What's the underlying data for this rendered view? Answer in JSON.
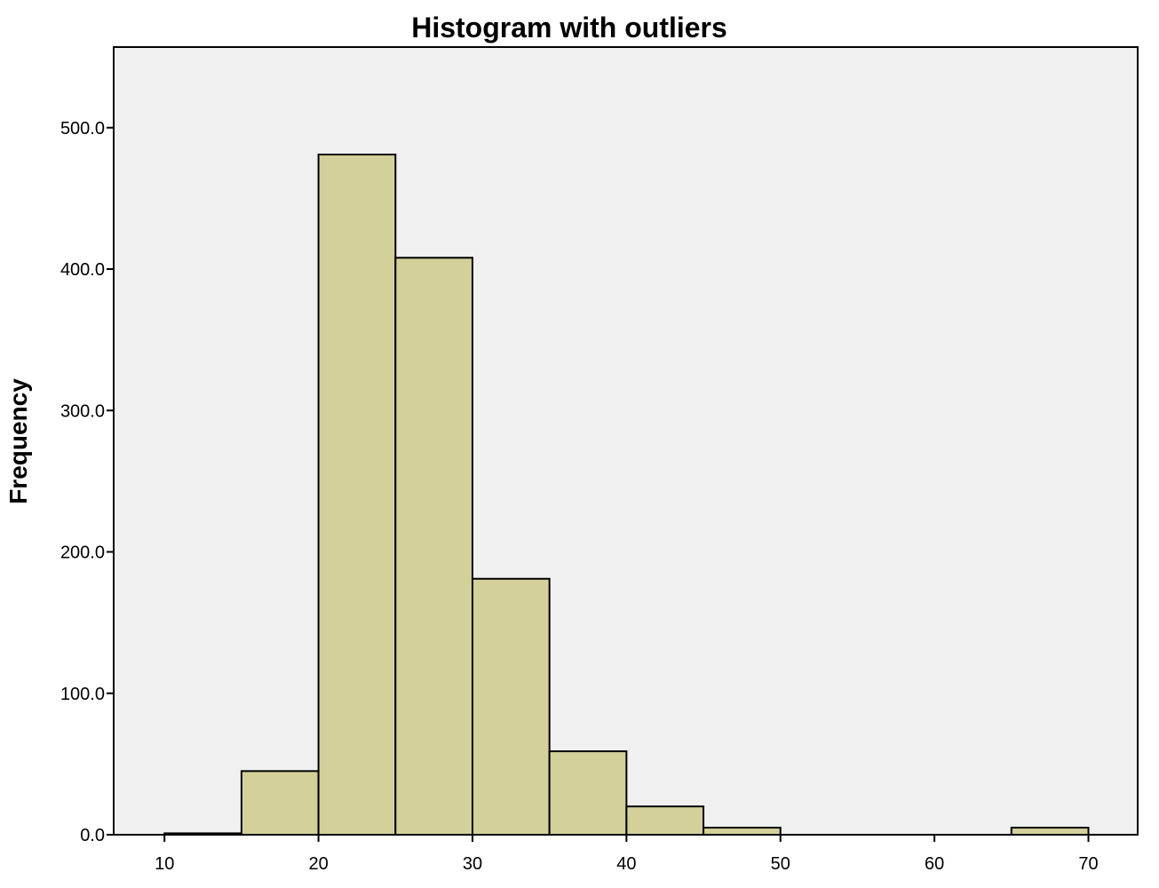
{
  "chart_data": {
    "type": "bar",
    "title": "Histogram with outliers",
    "xlabel": "",
    "ylabel": "Frequency",
    "bin_width": 5,
    "bins": [
      {
        "start": 10,
        "end": 15,
        "value": 1
      },
      {
        "start": 15,
        "end": 20,
        "value": 45
      },
      {
        "start": 20,
        "end": 25,
        "value": 481
      },
      {
        "start": 25,
        "end": 30,
        "value": 408
      },
      {
        "start": 30,
        "end": 35,
        "value": 181
      },
      {
        "start": 35,
        "end": 40,
        "value": 59
      },
      {
        "start": 40,
        "end": 45,
        "value": 20
      },
      {
        "start": 45,
        "end": 50,
        "value": 5
      },
      {
        "start": 65,
        "end": 70,
        "value": 5
      }
    ],
    "x_ticks": [
      "10",
      "20",
      "30",
      "40",
      "50",
      "60",
      "70"
    ],
    "y_ticks": [
      "0.0",
      "100.0",
      "200.0",
      "300.0",
      "400.0",
      "500.0"
    ],
    "xlim": [
      6.7,
      73.2
    ],
    "ylim": [
      0,
      557
    ],
    "grid": false,
    "colors": {
      "bar_fill": "#d4d09a",
      "bar_stroke": "#000000",
      "plot_background": "#f0f0f0"
    }
  }
}
